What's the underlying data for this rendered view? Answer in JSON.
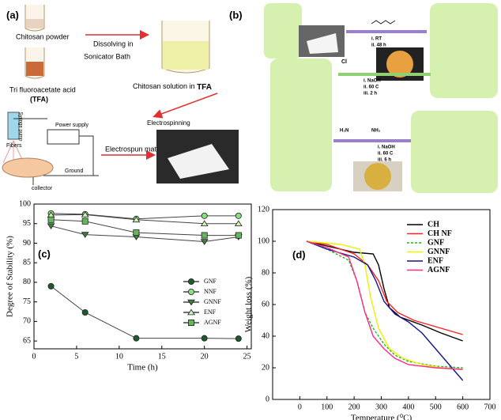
{
  "panel_a": {
    "label": "(a)",
    "powder": "Chitosan powder",
    "acid": "Tri fluoroacetate acid",
    "acid_abbr": "(TFA)",
    "dissolve_1": "Dissolving in",
    "dissolve_2": "Sonicator Bath",
    "solution": "Chitosan solution in",
    "solution_bold": "TFA",
    "electrospinning": "Electrospinning",
    "power": "Power supply",
    "pump": "Syringe pump",
    "fibers": "Fibers",
    "ground": "Ground",
    "collector": "collector",
    "mat": "Electrospun mat"
  },
  "panel_b": {
    "label": "(b)",
    "step1": [
      "i. RT",
      "ii. 48 h"
    ],
    "step2": [
      "i. NaOH",
      "ii. 60 C",
      "iii. 2 h"
    ],
    "chlorine": "Cl",
    "step3": [
      "i. NaOH",
      "ii. 60 C",
      "iii. 6 h"
    ],
    "amine_1": "H₂N",
    "amine_2": "NH₂"
  },
  "chart_data": [
    {
      "type": "line",
      "annotation": "(c)",
      "xlabel": "Time (h)",
      "ylabel": "Degree of Stability (%)",
      "x": [
        2,
        6,
        12,
        20,
        24
      ],
      "xlim": [
        0,
        25.5
      ],
      "xticks": [
        0,
        5,
        10,
        15,
        20,
        25
      ],
      "ylim": [
        63,
        100
      ],
      "yticks": [
        65,
        70,
        75,
        80,
        85,
        90,
        95,
        100
      ],
      "line_color": "#444",
      "legend": "center-right",
      "series": [
        {
          "name": "GNF",
          "color": "#1f5a2c",
          "marker": "circle",
          "values": [
            79,
            72.3,
            65.7,
            65.7,
            65.6
          ]
        },
        {
          "name": "NNF",
          "color": "#86e07c",
          "marker": "circle",
          "values": [
            97.6,
            97.4,
            96.2,
            97.0,
            97.0
          ]
        },
        {
          "name": "GNNF",
          "color": "#3f7f3a",
          "marker": "triangle-down",
          "values": [
            94.4,
            92.2,
            91.6,
            90.4,
            91.6
          ]
        },
        {
          "name": "ENF",
          "color": "#d2f2bc",
          "marker": "triangle-up",
          "values": [
            97.2,
            97.3,
            96.0,
            95.0,
            95.0
          ]
        },
        {
          "name": "AGNF",
          "color": "#62b85a",
          "marker": "square",
          "values": [
            96.0,
            95.6,
            92.7,
            92.0,
            92.0
          ]
        }
      ]
    },
    {
      "type": "line",
      "annotation": "(d)",
      "xlabel": "Temperature (⁰C)",
      "ylabel": "Weight loss (%)",
      "xlim": [
        -100,
        700
      ],
      "xticks": [
        0,
        100,
        200,
        300,
        400,
        500,
        600,
        700
      ],
      "ylim": [
        0,
        120
      ],
      "yticks": [
        0,
        20,
        40,
        60,
        80,
        100,
        120
      ],
      "legend": "upper-right",
      "series": [
        {
          "name": "CH",
          "color": "#000000",
          "x": [
            25,
            100,
            200,
            270,
            290,
            310,
            330,
            370,
            450,
            520,
            600
          ],
          "values": [
            100,
            97,
            93,
            92,
            85,
            70,
            58,
            52,
            47,
            42,
            37
          ]
        },
        {
          "name": "CH NF",
          "color": "#ff2020",
          "x": [
            25,
            100,
            200,
            250,
            290,
            320,
            360,
            420,
            500,
            600
          ],
          "values": [
            100,
            98,
            92,
            85,
            75,
            62,
            55,
            50,
            46,
            41
          ]
        },
        {
          "name": "GNF",
          "color": "#22b422",
          "dash": true,
          "x": [
            25,
            100,
            180,
            210,
            240,
            270,
            310,
            350,
            400,
            500,
            600
          ],
          "values": [
            100,
            95,
            88,
            75,
            55,
            45,
            35,
            28,
            24,
            21,
            20
          ]
        },
        {
          "name": "GNNF",
          "color": "#f0f000",
          "x": [
            25,
            150,
            220,
            240,
            260,
            290,
            330,
            380,
            450,
            520,
            600
          ],
          "values": [
            100,
            98,
            95,
            85,
            65,
            45,
            32,
            26,
            22,
            20,
            19
          ]
        },
        {
          "name": "ENF",
          "color": "#14148c",
          "x": [
            25,
            100,
            200,
            250,
            280,
            310,
            350,
            400,
            450,
            500,
            550,
            600
          ],
          "values": [
            100,
            95,
            90,
            85,
            75,
            62,
            54,
            49,
            42,
            32,
            22,
            12
          ]
        },
        {
          "name": "AGNF",
          "color": "#ff2a8a",
          "x": [
            25,
            100,
            180,
            210,
            240,
            270,
            310,
            350,
            400,
            500,
            600
          ],
          "values": [
            100,
            96,
            90,
            75,
            55,
            40,
            32,
            26,
            22,
            20,
            19
          ]
        }
      ]
    }
  ]
}
